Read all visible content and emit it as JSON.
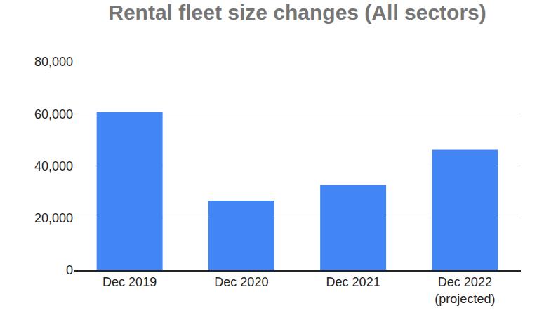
{
  "chart_data": {
    "type": "bar",
    "title": "Rental fleet size changes (All sectors)",
    "categories": [
      "Dec 2019",
      "Dec 2020",
      "Dec 2021",
      "Dec 2022\n(projected)"
    ],
    "values": [
      60700,
      26700,
      32700,
      46200
    ],
    "color": "#4285f4",
    "ylim": [
      0,
      80000
    ],
    "yticks": [
      0,
      {
        "value": 20000,
        "label": "20,000"
      },
      {
        "value": 40000,
        "label": "40,000"
      },
      {
        "value": 60000,
        "label": "60,000"
      },
      {
        "value": 80000,
        "label": "80,000"
      }
    ],
    "grid": true
  }
}
